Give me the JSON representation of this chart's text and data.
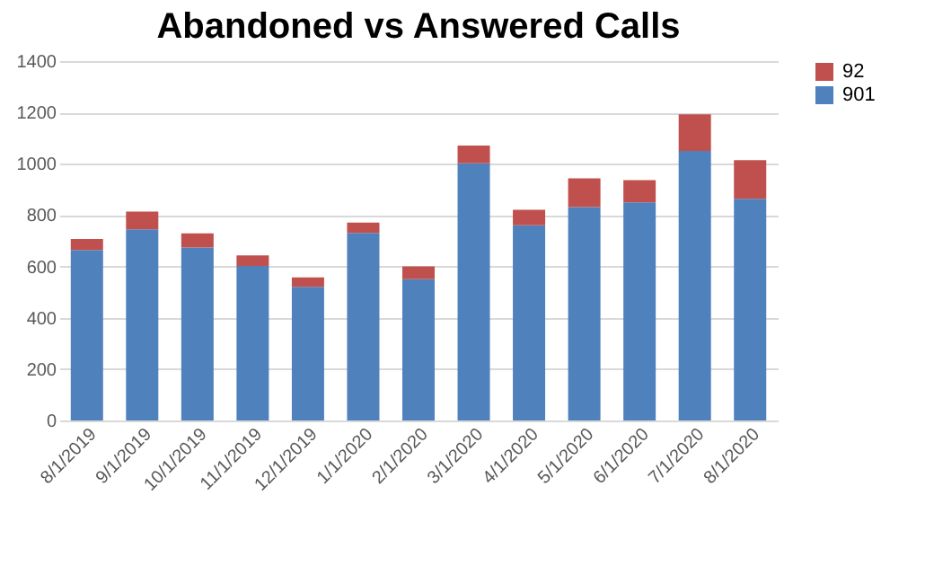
{
  "chart_data": {
    "type": "bar",
    "title": "Abandoned vs Answered Calls",
    "stacked": true,
    "categories": [
      "8/1/2019",
      "9/1/2019",
      "10/1/2019",
      "11/1/2019",
      "12/1/2019",
      "1/1/2020",
      "2/1/2020",
      "3/1/2020",
      "4/1/2020",
      "5/1/2020",
      "6/1/2020",
      "7/1/2020",
      "8/1/2020"
    ],
    "series": [
      {
        "name": "901",
        "color": "#4f81bd",
        "values": [
          664,
          745,
          674,
          602,
          521,
          731,
          550,
          1002,
          760,
          831,
          850,
          1050,
          864
        ]
      },
      {
        "name": "92",
        "color": "#c0504d",
        "values": [
          43,
          69,
          55,
          41,
          36,
          40,
          50,
          69,
          61,
          112,
          86,
          143,
          150
        ]
      }
    ],
    "ylim": [
      0,
      1400
    ],
    "yticks": [
      0,
      200,
      400,
      600,
      800,
      1000,
      1200,
      1400
    ],
    "grid": "y",
    "legend": "right"
  }
}
